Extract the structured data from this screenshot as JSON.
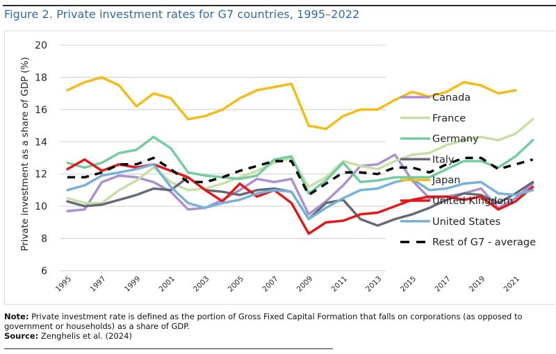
{
  "figure": {
    "title": "Figure 2. Private investment rates for G7 countries, 1995–2022"
  },
  "notes": {
    "note_label": "Note:",
    "note_text": " Private investment rate is defined as the portion of Gross Fixed Capital Formation that falls on corporations (as opposed to government or households) as a share of GDP.",
    "source_label": "Source:",
    "source_text": " Zenghelis et al. (2024)"
  },
  "chart_data": {
    "type": "line",
    "title": "Private investment rates for G7 countries, 1995–2022",
    "xlabel": "",
    "ylabel": "Private investment as a share of GDP (%)",
    "ylim": [
      6,
      20
    ],
    "yticks": [
      6,
      8,
      10,
      12,
      14,
      16,
      18,
      20
    ],
    "grid": true,
    "legend_position": "right",
    "x": [
      1995,
      1996,
      1997,
      1998,
      1999,
      2000,
      2001,
      2002,
      2003,
      2004,
      2005,
      2006,
      2007,
      2008,
      2009,
      2010,
      2011,
      2012,
      2013,
      2014,
      2015,
      2016,
      2017,
      2018,
      2019,
      2020,
      2021,
      2022
    ],
    "xtick_labels": [
      "1995",
      "1997",
      "1999",
      "2001",
      "2003",
      "2005",
      "2007",
      "2009",
      "2011",
      "2013",
      "2015",
      "2017",
      "2019",
      "2021"
    ],
    "series": [
      {
        "name": "Canada",
        "color": "#ab8fd0",
        "dashed": false,
        "values": [
          9.7,
          9.8,
          11.5,
          11.9,
          11.8,
          11.5,
          10.9,
          9.8,
          9.9,
          10.4,
          11.0,
          11.7,
          11.5,
          11.7,
          9.5,
          10.3,
          11.3,
          12.5,
          12.6,
          13.2,
          11.6,
          10.5,
          10.6,
          10.8,
          11.1,
          9.9,
          10.5,
          11.4
        ]
      },
      {
        "name": "France",
        "color": "#c5e0a2",
        "dashed": false,
        "values": [
          10.5,
          10.2,
          10.2,
          11.0,
          11.6,
          12.4,
          11.5,
          11.0,
          11.1,
          11.4,
          11.8,
          12.2,
          12.7,
          13.0,
          11.2,
          11.8,
          12.8,
          12.5,
          12.3,
          12.8,
          13.2,
          13.3,
          13.8,
          14.1,
          14.3,
          14.1,
          14.5,
          15.4
        ]
      },
      {
        "name": "Germany",
        "color": "#72cd9e",
        "dashed": false,
        "values": [
          12.7,
          12.4,
          12.7,
          13.3,
          13.5,
          14.3,
          13.6,
          12.1,
          11.9,
          11.8,
          11.7,
          11.9,
          12.9,
          13.1,
          10.8,
          11.6,
          12.7,
          11.5,
          11.6,
          11.8,
          11.8,
          11.8,
          12.3,
          12.8,
          12.8,
          12.4,
          13.1,
          14.1
        ]
      },
      {
        "name": "Italy",
        "color": "#666a78",
        "dashed": false,
        "values": [
          10.3,
          10.0,
          10.1,
          10.4,
          10.7,
          11.1,
          11.0,
          11.8,
          11.0,
          10.9,
          10.7,
          11.0,
          11.1,
          10.9,
          9.2,
          10.2,
          10.4,
          9.2,
          8.8,
          9.2,
          9.5,
          9.9,
          10.4,
          10.8,
          10.7,
          10.2,
          10.8,
          11.5
        ]
      },
      {
        "name": "Japan",
        "color": "#f5bb15",
        "dashed": false,
        "values": [
          17.2,
          17.7,
          18.0,
          17.5,
          16.2,
          17.0,
          16.7,
          15.4,
          15.6,
          16.0,
          16.7,
          17.2,
          17.4,
          17.6,
          15.0,
          14.8,
          15.6,
          16.0,
          16.0,
          16.6,
          17.1,
          16.8,
          17.1,
          17.7,
          17.5,
          17.0,
          17.2,
          null
        ]
      },
      {
        "name": "United Kingdom",
        "color": "#e41617",
        "dashed": false,
        "values": [
          12.3,
          12.9,
          12.2,
          12.6,
          12.4,
          12.6,
          12.2,
          11.8,
          11.0,
          10.3,
          11.4,
          10.6,
          11.0,
          10.2,
          8.3,
          9.0,
          9.1,
          9.5,
          9.6,
          10.0,
          10.4,
          10.6,
          10.6,
          10.4,
          10.6,
          9.8,
          10.3,
          11.2
        ]
      },
      {
        "name": "United States",
        "color": "#74b2da",
        "dashed": false,
        "values": [
          11.0,
          11.3,
          11.9,
          12.1,
          12.3,
          12.6,
          11.2,
          10.2,
          9.9,
          10.2,
          10.4,
          10.8,
          11.0,
          10.9,
          9.2,
          9.9,
          10.5,
          11.0,
          11.1,
          11.5,
          11.7,
          11.0,
          11.1,
          11.4,
          11.5,
          10.8,
          10.7,
          11.0
        ]
      },
      {
        "name": "Rest of G7 - average",
        "color": "#000000",
        "dashed": true,
        "values": [
          11.8,
          11.8,
          12.1,
          12.6,
          12.6,
          13.0,
          12.3,
          11.5,
          11.5,
          11.8,
          12.2,
          12.5,
          12.8,
          12.8,
          10.7,
          11.4,
          12.1,
          12.1,
          12.0,
          12.4,
          12.4,
          12.1,
          12.6,
          13.0,
          13.0,
          12.3,
          12.6,
          12.9
        ]
      }
    ]
  }
}
